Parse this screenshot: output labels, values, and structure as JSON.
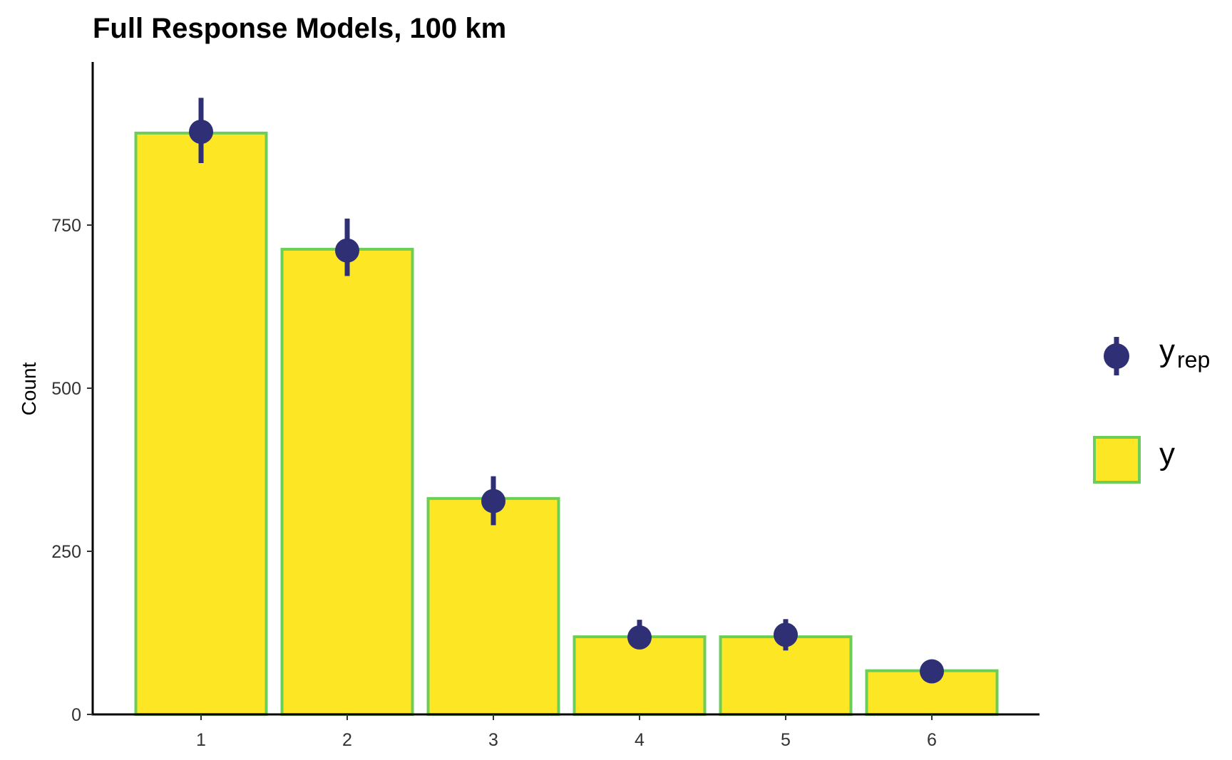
{
  "chart_data": {
    "type": "bar",
    "title": "Full Response Models, 100 km",
    "xlabel": "",
    "ylabel": "Count",
    "categories": [
      "1",
      "2",
      "3",
      "4",
      "5",
      "6"
    ],
    "ylim": [
      0,
      1000
    ],
    "yticks": [
      0,
      250,
      500,
      750
    ],
    "grid": false,
    "legend_position": "right",
    "series": [
      {
        "name": "y",
        "kind": "bar",
        "values": [
          891,
          713,
          331,
          119,
          119,
          67
        ]
      },
      {
        "name": "y_rep",
        "kind": "pointrange",
        "values": [
          893,
          711,
          327,
          118,
          122,
          66
        ],
        "lower": [
          845,
          672,
          290,
          100,
          98,
          60
        ],
        "upper": [
          945,
          760,
          365,
          145,
          146,
          72
        ]
      }
    ],
    "legend": {
      "yrep_main": "y",
      "yrep_sub": "rep",
      "y_label": "y"
    },
    "colors": {
      "bar_fill": "#FDE725",
      "bar_stroke": "#6DCD59",
      "point": "#2E2F74",
      "axis": "#000000"
    }
  }
}
